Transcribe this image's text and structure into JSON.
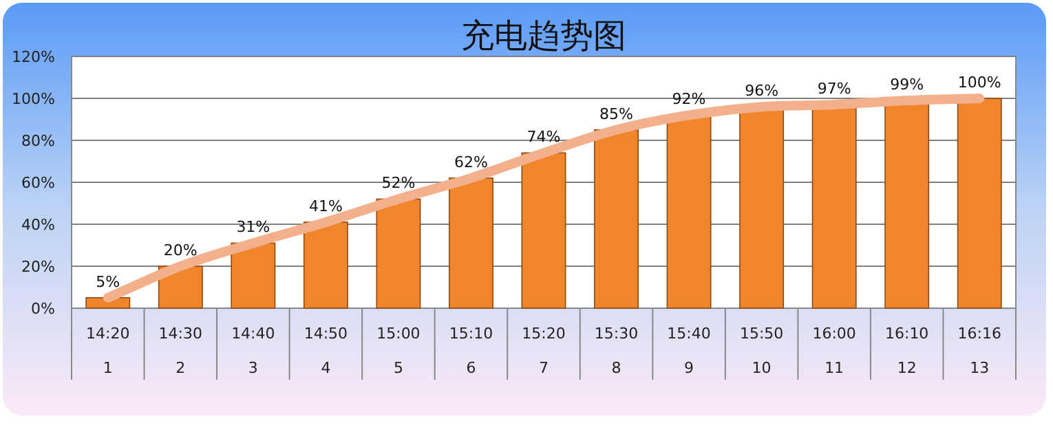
{
  "chart_data": {
    "type": "bar",
    "title": "充电趋势图",
    "categories": [
      "14:20\n1",
      "14:30\n2",
      "14:40\n3",
      "14:50\n4",
      "15:00\n5",
      "15:10\n6",
      "15:20\n7",
      "15:30\n8",
      "15:40\n9",
      "15:50\n10",
      "16:00\n11",
      "16:10\n12",
      "16:16\n13"
    ],
    "series": [
      {
        "color": "#f0852b",
        "values": [
          5,
          20,
          31,
          41,
          52,
          62,
          74,
          85,
          92,
          96,
          97,
          99,
          100
        ],
        "value_labels": [
          "5%",
          "20%",
          "31%",
          "41%",
          "52%",
          "62%",
          "74%",
          "85%",
          "92%",
          "96%",
          "97%",
          "99%",
          "100%"
        ]
      },
      {
        "type": "line",
        "color": "#f4b08a",
        "values": [
          5,
          20,
          31,
          41,
          52,
          62,
          74,
          85,
          92,
          96,
          97,
          99,
          100
        ]
      }
    ],
    "ylim": [
      0,
      120
    ],
    "yticks": [
      {
        "value": 0,
        "label": "0%"
      },
      {
        "value": 20,
        "label": "20%"
      },
      {
        "value": 40,
        "label": "40%"
      },
      {
        "value": 60,
        "label": "60%"
      },
      {
        "value": 80,
        "label": "80%"
      },
      {
        "value": 100,
        "label": "100%"
      },
      {
        "value": 120,
        "label": "120%"
      }
    ],
    "grid": "y"
  }
}
